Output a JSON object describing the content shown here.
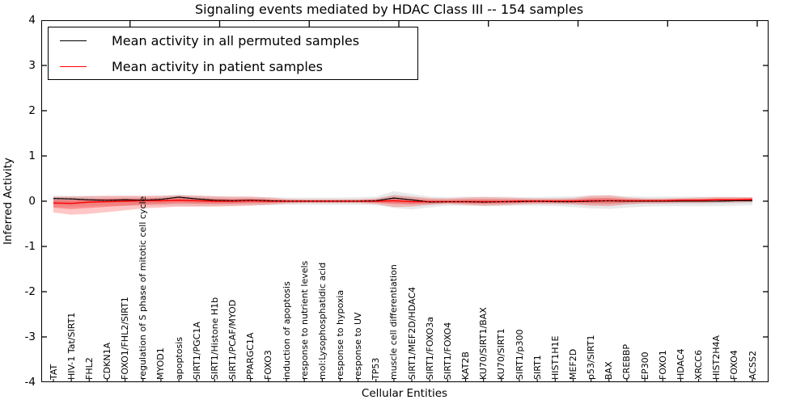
{
  "title": "Signaling events mediated by HDAC Class III -- 154 samples",
  "legend": {
    "items": [
      {
        "label": "Mean activity in all permuted samples",
        "color": "#000000"
      },
      {
        "label": "Mean activity in patient samples",
        "color": "#ff0000"
      }
    ]
  },
  "axes": {
    "ylabel": "Inferred Activity",
    "xlabel": "Cellular Entities",
    "yticks": [
      4,
      3,
      2,
      1,
      0,
      -1,
      -2,
      -3,
      -4
    ],
    "ylim": [
      -4,
      4
    ]
  },
  "chart_data": {
    "type": "line",
    "title": "Signaling events mediated by HDAC Class III -- 154 samples",
    "xlabel": "Cellular Entities",
    "ylabel": "Inferred Activity",
    "ylim": [
      -4,
      4
    ],
    "grid": false,
    "legend_position": "upper left",
    "categories": [
      "TAT",
      "HIV-1 Tat/SIRT1",
      "FHL2",
      "CDKN1A",
      "FOXO1/FHL2/SIRT1",
      "regulation of S phase of mitotic cell cycle",
      "MYOD1",
      "apoptosis",
      "SIRT1/PGC1A",
      "SIRT1/Histone H1b",
      "SIRT1/PCAF/MYOD",
      "PPARGC1A",
      "FOXO3",
      "induction of apoptosis",
      "response to nutrient levels",
      "mol:Lysophosphatidic acid",
      "response to hypoxia",
      "response to UV",
      "TP53",
      "muscle cell differentiation",
      "SIRT1/MEF2D/HDAC4",
      "SIRT1/FOXO3a",
      "SIRT1/FOXO4",
      "KAT2B",
      "KU70/SIRT1/BAX",
      "KU70/SIRT1",
      "SIRT1/p300",
      "SIRT1",
      "HIST1H1E",
      "MEF2D",
      "p53/SIRT1",
      "BAX",
      "CREBBP",
      "EP300",
      "FOXO1",
      "HDAC4",
      "XRCC6",
      "HIST2H4A",
      "FOXO4",
      "ACSS2"
    ],
    "series": [
      {
        "name": "Mean activity in all permuted samples",
        "color": "#000000",
        "band_color": "#999999",
        "values": [
          0.06,
          0.05,
          0.03,
          0.02,
          0.03,
          0.02,
          0.04,
          0.09,
          0.05,
          0.02,
          0.01,
          0.02,
          0.01,
          0.0,
          0.0,
          0.0,
          0.0,
          0.0,
          0.01,
          0.07,
          0.03,
          -0.02,
          -0.01,
          -0.01,
          -0.02,
          -0.01,
          -0.01,
          0.0,
          -0.01,
          -0.01,
          0.0,
          0.01,
          0.0,
          0.0,
          0.0,
          0.0,
          0.0,
          0.0,
          0.01,
          0.01
        ],
        "band_upper": [
          0.12,
          0.12,
          0.12,
          0.11,
          0.11,
          0.1,
          0.12,
          0.15,
          0.13,
          0.11,
          0.1,
          0.1,
          0.09,
          0.08,
          0.08,
          0.08,
          0.08,
          0.09,
          0.1,
          0.22,
          0.16,
          0.1,
          0.09,
          0.1,
          0.1,
          0.1,
          0.09,
          0.09,
          0.1,
          0.11,
          0.13,
          0.13,
          0.11,
          0.1,
          0.1,
          0.1,
          0.1,
          0.1,
          0.1,
          0.09
        ],
        "band_lower": [
          -0.12,
          -0.12,
          -0.11,
          -0.1,
          -0.1,
          -0.1,
          -0.1,
          -0.1,
          -0.11,
          -0.1,
          -0.1,
          -0.09,
          -0.09,
          -0.08,
          -0.08,
          -0.08,
          -0.08,
          -0.08,
          -0.09,
          -0.15,
          -0.18,
          -0.14,
          -0.1,
          -0.1,
          -0.11,
          -0.11,
          -0.1,
          -0.1,
          -0.11,
          -0.13,
          -0.16,
          -0.17,
          -0.14,
          -0.12,
          -0.11,
          -0.11,
          -0.11,
          -0.11,
          -0.1,
          -0.09
        ]
      },
      {
        "name": "Mean activity in patient samples",
        "color": "#ff0000",
        "band_color": "#ff0000",
        "values": [
          -0.04,
          -0.05,
          -0.02,
          -0.01,
          0.0,
          0.01,
          0.01,
          0.02,
          0.01,
          0.0,
          0.0,
          0.01,
          0.0,
          0.0,
          0.0,
          0.0,
          0.0,
          0.0,
          0.0,
          0.01,
          -0.01,
          -0.01,
          -0.01,
          -0.01,
          -0.01,
          -0.01,
          0.0,
          0.0,
          0.0,
          0.0,
          0.01,
          0.01,
          0.01,
          0.01,
          0.01,
          0.02,
          0.02,
          0.03,
          0.03,
          0.04
        ],
        "band_upper": [
          0.1,
          0.1,
          0.11,
          0.12,
          0.12,
          0.12,
          0.12,
          0.13,
          0.12,
          0.11,
          0.1,
          0.1,
          0.08,
          0.05,
          0.04,
          0.04,
          0.04,
          0.04,
          0.06,
          0.13,
          0.1,
          0.07,
          0.06,
          0.08,
          0.09,
          0.08,
          0.07,
          0.06,
          0.06,
          0.07,
          0.12,
          0.13,
          0.08,
          0.06,
          0.06,
          0.07,
          0.08,
          0.09,
          0.09,
          0.09
        ],
        "band_lower": [
          -0.25,
          -0.3,
          -0.28,
          -0.24,
          -0.2,
          -0.16,
          -0.14,
          -0.12,
          -0.12,
          -0.12,
          -0.11,
          -0.1,
          -0.08,
          -0.05,
          -0.04,
          -0.04,
          -0.04,
          -0.04,
          -0.06,
          -0.13,
          -0.12,
          -0.08,
          -0.06,
          -0.08,
          -0.1,
          -0.09,
          -0.07,
          -0.06,
          -0.06,
          -0.07,
          -0.1,
          -0.11,
          -0.07,
          -0.05,
          -0.05,
          -0.04,
          -0.04,
          -0.03,
          -0.03,
          -0.02
        ]
      }
    ]
  }
}
